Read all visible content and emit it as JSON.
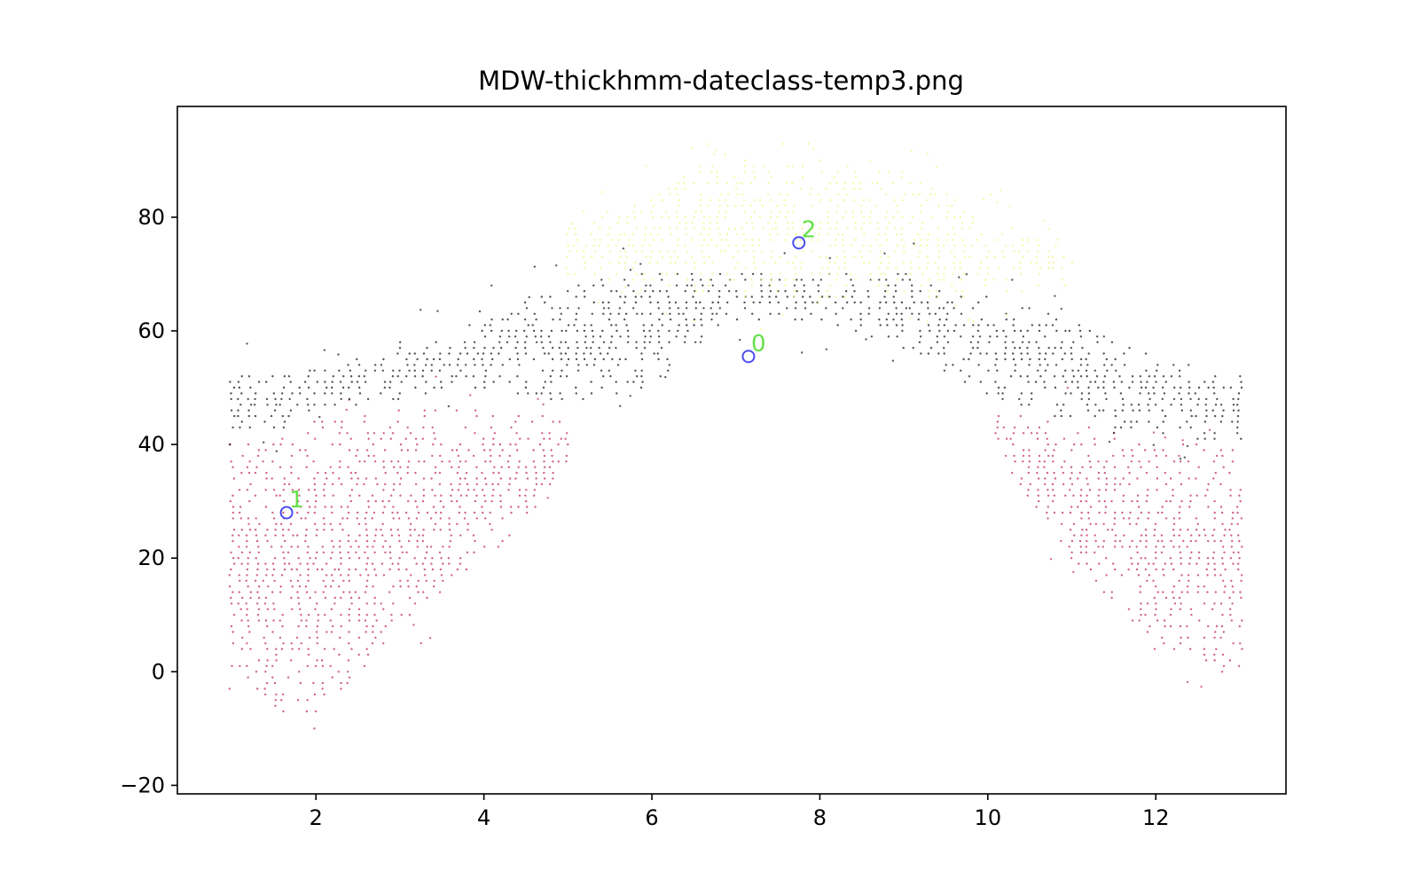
{
  "chart_data": {
    "type": "scatter",
    "title": "MDW-thickhmm-dateclass-temp3.png",
    "xlabel": "",
    "ylabel": "",
    "xlim": [
      0.35,
      13.55
    ],
    "ylim": [
      -21.5,
      99.5
    ],
    "x_ticks": [
      2,
      4,
      6,
      8,
      10,
      12
    ],
    "y_ticks": [
      -20,
      0,
      20,
      40,
      60,
      80
    ],
    "grid": false,
    "legend": "none",
    "point_colors": {
      "cluster_0": "#1a1a1a",
      "cluster_1": "#c0305a",
      "cluster_2": "#f2f78a"
    },
    "centroid_marker_color": "#4a4ef0",
    "centroid_label_color": "#66e04a",
    "series": [
      {
        "cluster": "0",
        "color": "#1a1a1a",
        "description_points": [
          {
            "x": 1,
            "y": 40
          },
          {
            "x": 1,
            "y": 52
          },
          {
            "x": 2,
            "y": 45
          },
          {
            "x": 2,
            "y": 54
          },
          {
            "x": 3,
            "y": 48
          },
          {
            "x": 3,
            "y": 58
          },
          {
            "x": 4,
            "y": 50
          },
          {
            "x": 4,
            "y": 62
          },
          {
            "x": 5,
            "y": 47
          },
          {
            "x": 5,
            "y": 68
          },
          {
            "x": 6,
            "y": 50
          },
          {
            "x": 6,
            "y": 71
          },
          {
            "x": 7,
            "y": 62
          },
          {
            "x": 7,
            "y": 70
          },
          {
            "x": 8,
            "y": 62
          },
          {
            "x": 8,
            "y": 70
          },
          {
            "x": 9,
            "y": 56
          },
          {
            "x": 9,
            "y": 70
          },
          {
            "x": 10,
            "y": 48
          },
          {
            "x": 10,
            "y": 66
          },
          {
            "x": 11,
            "y": 44
          },
          {
            "x": 11,
            "y": 62
          },
          {
            "x": 12,
            "y": 42
          },
          {
            "x": 12,
            "y": 56
          },
          {
            "x": 13,
            "y": 40
          },
          {
            "x": 13,
            "y": 52
          }
        ],
        "centroid": {
          "x": 7.15,
          "y": 55.5,
          "label": "0"
        }
      },
      {
        "cluster": "1",
        "color": "#c0305a",
        "description_points": [
          {
            "x": 1,
            "y": -3
          },
          {
            "x": 1,
            "y": 40
          },
          {
            "x": 2,
            "y": -10
          },
          {
            "x": 2,
            "y": 44
          },
          {
            "x": 3,
            "y": 8
          },
          {
            "x": 3,
            "y": 46
          },
          {
            "x": 4,
            "y": 18
          },
          {
            "x": 4,
            "y": 46
          },
          {
            "x": 5,
            "y": 36
          },
          {
            "x": 5,
            "y": 45
          },
          {
            "x": 10,
            "y": 40
          },
          {
            "x": 10,
            "y": 46
          },
          {
            "x": 11,
            "y": 20
          },
          {
            "x": 11,
            "y": 44
          },
          {
            "x": 12,
            "y": 4
          },
          {
            "x": 12,
            "y": 40
          },
          {
            "x": 13,
            "y": -2
          },
          {
            "x": 13,
            "y": 40
          }
        ],
        "centroid": {
          "x": 1.65,
          "y": 28,
          "label": "1"
        }
      },
      {
        "cluster": "2",
        "color": "#f2f78a",
        "description_points": [
          {
            "x": 5,
            "y": 70
          },
          {
            "x": 5,
            "y": 78
          },
          {
            "x": 6,
            "y": 68
          },
          {
            "x": 6,
            "y": 84
          },
          {
            "x": 7,
            "y": 66
          },
          {
            "x": 7,
            "y": 92
          },
          {
            "x": 8,
            "y": 66
          },
          {
            "x": 8,
            "y": 90
          },
          {
            "x": 9,
            "y": 66
          },
          {
            "x": 9,
            "y": 88
          },
          {
            "x": 10,
            "y": 66
          },
          {
            "x": 10,
            "y": 80
          },
          {
            "x": 11,
            "y": 68
          },
          {
            "x": 11,
            "y": 74
          }
        ],
        "centroid": {
          "x": 7.75,
          "y": 75.5,
          "label": "2"
        }
      }
    ]
  }
}
